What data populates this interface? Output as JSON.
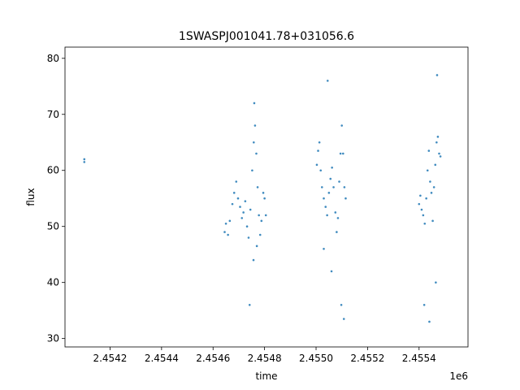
{
  "chart_data": {
    "type": "scatter",
    "title": "1SWASPJ001041.78+031056.6",
    "xlabel": "time",
    "ylabel": "flux",
    "x_offset_label": "1e6",
    "xlim": [
      2454025,
      2455590
    ],
    "ylim": [
      28.5,
      82.0
    ],
    "x_ticks": [
      2454200,
      2454400,
      2454600,
      2454800,
      2455000,
      2455200,
      2455400,
      2455600
    ],
    "x_tick_labels": [
      "2.4542",
      "2.4544",
      "2.4546",
      "2.4548",
      "2.4550",
      "2.4552",
      "2.4554",
      "2.4556"
    ],
    "y_ticks": [
      30,
      40,
      50,
      60,
      70,
      80
    ],
    "y_tick_labels": [
      "30",
      "40",
      "50",
      "60",
      "70",
      "80"
    ],
    "grid": false,
    "marker_color": "#1f77b4",
    "series": [
      {
        "points": [
          [
            2454100,
            61.5
          ],
          [
            2454100,
            62.0
          ],
          [
            2454645,
            49.0
          ],
          [
            2454650,
            50.5
          ],
          [
            2454658,
            48.5
          ],
          [
            2454665,
            51.0
          ],
          [
            2454675,
            54.0
          ],
          [
            2454682,
            56.0
          ],
          [
            2454690,
            58.0
          ],
          [
            2454697,
            55.0
          ],
          [
            2454705,
            53.5
          ],
          [
            2454712,
            51.5
          ],
          [
            2454718,
            52.5
          ],
          [
            2454725,
            54.5
          ],
          [
            2454732,
            50.0
          ],
          [
            2454738,
            48.0
          ],
          [
            2454745,
            53.0
          ],
          [
            2454752,
            60.0
          ],
          [
            2454758,
            65.0
          ],
          [
            2454763,
            68.0
          ],
          [
            2454768,
            63.0
          ],
          [
            2454773,
            57.0
          ],
          [
            2454778,
            52.0
          ],
          [
            2454783,
            48.5
          ],
          [
            2454788,
            51.0
          ],
          [
            2454795,
            56.0
          ],
          [
            2454800,
            55.0
          ],
          [
            2454805,
            52.0
          ],
          [
            2454760,
            72.0
          ],
          [
            2454757,
            44.0
          ],
          [
            2454742,
            36.0
          ],
          [
            2454770,
            46.5
          ],
          [
            2455003,
            61.0
          ],
          [
            2455008,
            63.5
          ],
          [
            2455013,
            65.0
          ],
          [
            2455018,
            60.0
          ],
          [
            2455023,
            57.0
          ],
          [
            2455030,
            55.0
          ],
          [
            2455037,
            53.5
          ],
          [
            2455043,
            52.0
          ],
          [
            2455050,
            56.0
          ],
          [
            2455056,
            58.5
          ],
          [
            2455062,
            60.5
          ],
          [
            2455068,
            57.0
          ],
          [
            2455075,
            52.5
          ],
          [
            2455080,
            49.0
          ],
          [
            2455085,
            51.5
          ],
          [
            2455090,
            58.0
          ],
          [
            2455095,
            63.0
          ],
          [
            2455100,
            68.0
          ],
          [
            2455105,
            63.0
          ],
          [
            2455110,
            57.0
          ],
          [
            2455115,
            55.0
          ],
          [
            2455060,
            42.0
          ],
          [
            2455098,
            36.0
          ],
          [
            2455045,
            76.0
          ],
          [
            2455108,
            33.5
          ],
          [
            2455030,
            46.0
          ],
          [
            2455400,
            54.0
          ],
          [
            2455405,
            55.5
          ],
          [
            2455410,
            53.0
          ],
          [
            2455416,
            52.0
          ],
          [
            2455422,
            50.5
          ],
          [
            2455428,
            55.0
          ],
          [
            2455433,
            60.0
          ],
          [
            2455438,
            63.5
          ],
          [
            2455443,
            58.0
          ],
          [
            2455448,
            56.0
          ],
          [
            2455453,
            51.0
          ],
          [
            2455458,
            57.0
          ],
          [
            2455463,
            61.0
          ],
          [
            2455468,
            65.0
          ],
          [
            2455473,
            66.0
          ],
          [
            2455478,
            63.0
          ],
          [
            2455483,
            62.5
          ],
          [
            2455420,
            36.0
          ],
          [
            2455470,
            77.0
          ],
          [
            2455440,
            33.0
          ],
          [
            2455465,
            40.0
          ]
        ]
      }
    ]
  }
}
